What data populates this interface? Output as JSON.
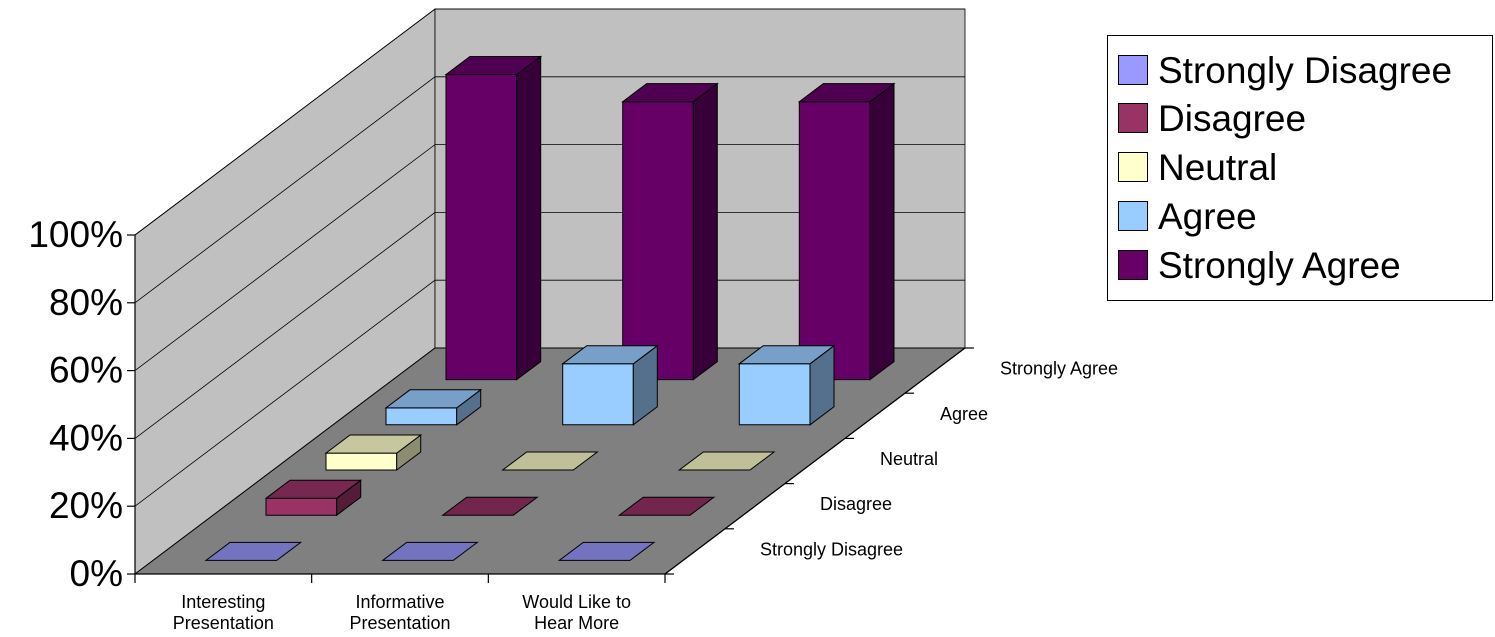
{
  "chart_data": {
    "type": "bar",
    "variant": "3d-column",
    "title": "",
    "categories": [
      "Interesting Presentation",
      "Informative Presentation",
      "Would Like to Hear More"
    ],
    "category_lines": [
      [
        "Interesting",
        "Presentation"
      ],
      [
        "Informative",
        "Presentation"
      ],
      [
        "Would Like to",
        "Hear More"
      ]
    ],
    "series": [
      {
        "name": "Strongly Disagree",
        "color": "#9999ff",
        "values": [
          0,
          0,
          0
        ]
      },
      {
        "name": "Disagree",
        "color": "#993366",
        "values": [
          5,
          0,
          0
        ]
      },
      {
        "name": "Neutral",
        "color": "#ffffcc",
        "values": [
          5,
          0,
          0
        ]
      },
      {
        "name": "Agree",
        "color": "#99ccff",
        "values": [
          5,
          18,
          18
        ]
      },
      {
        "name": "Strongly Agree",
        "color": "#660066",
        "values": [
          90,
          82,
          82
        ]
      }
    ],
    "y_tick_labels": [
      "0%",
      "20%",
      "40%",
      "60%",
      "80%",
      "100%"
    ],
    "ylim": [
      0,
      100
    ],
    "grid": true,
    "legend_position": "top-right",
    "colors": {
      "wall": "#c0c0c0",
      "floor": "#808080",
      "grid_line": "#000000"
    }
  }
}
